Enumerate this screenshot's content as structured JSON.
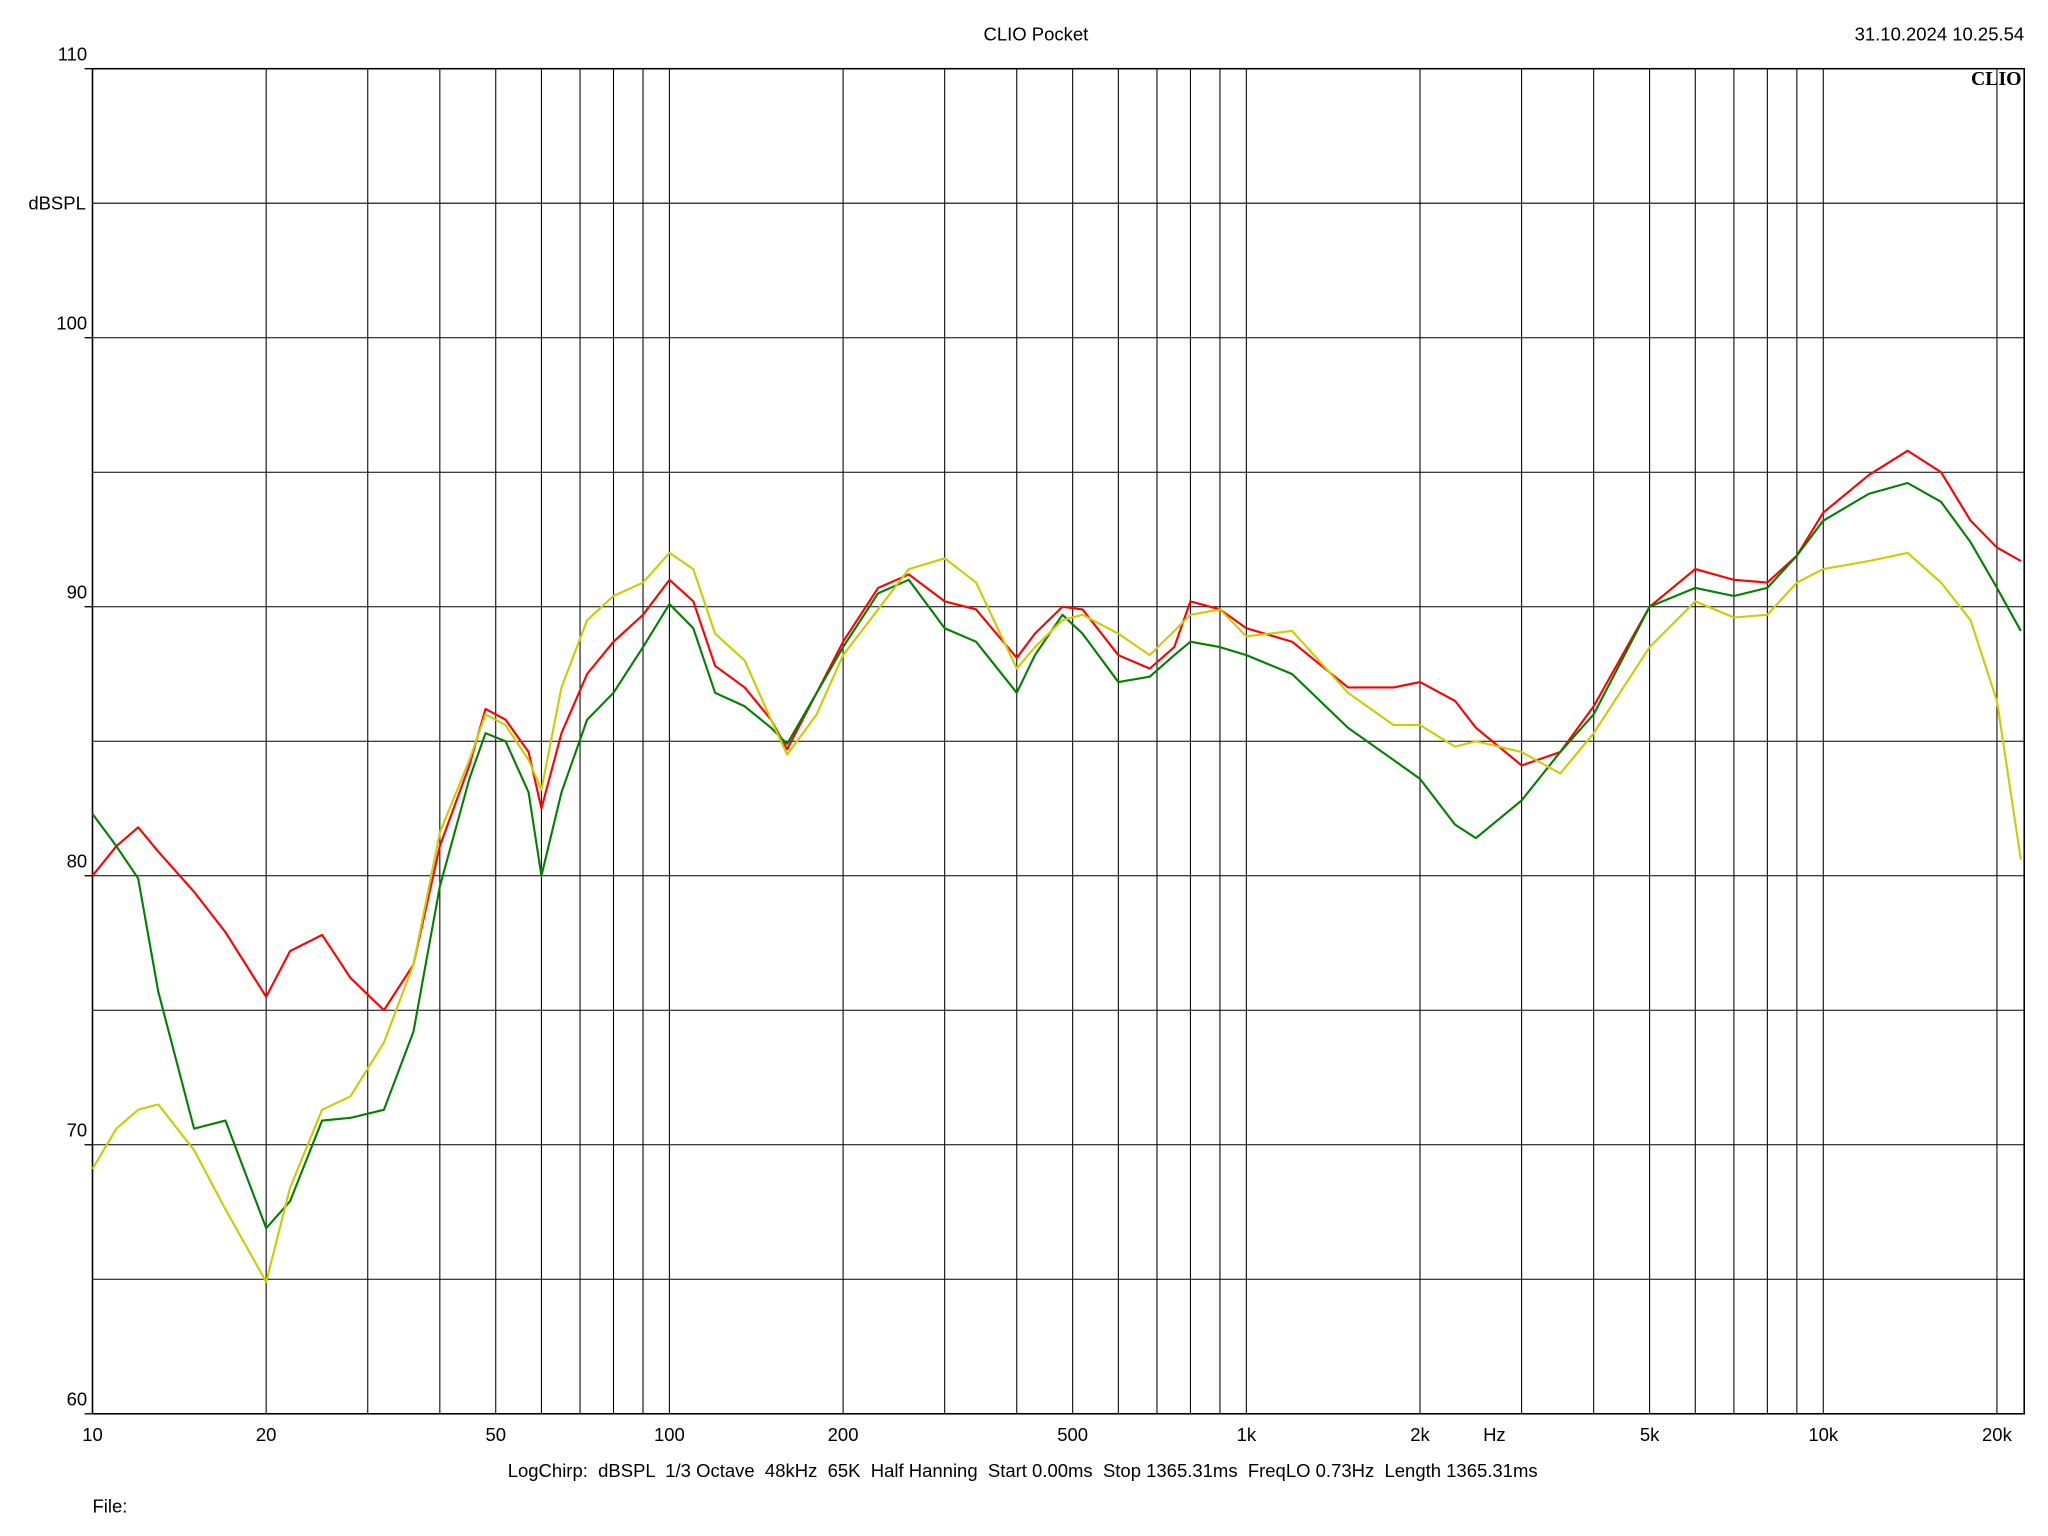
{
  "chart_data": {
    "type": "line",
    "title": "CLIO Pocket",
    "timestamp": "31.10.2024 10.25.54",
    "logo": "CLIO",
    "y_label": "dBSPL",
    "x_label": "Hz",
    "settings_line": "LogChirp:  dBSPL  1/3 Octave  48kHz  65K  Half Hanning  Start 0.00ms  Stop 1365.31ms  FreqLO 0.73Hz  Length 1365.31ms",
    "file_label": "File:",
    "log_x": true,
    "grid": true,
    "xlim": [
      10,
      22300
    ],
    "ylim": [
      60,
      110
    ],
    "xticks": [
      10,
      20,
      50,
      100,
      200,
      500,
      {
        "value": 1000,
        "label": "1k"
      },
      {
        "value": 2000,
        "label": "2k"
      },
      {
        "value": 5000,
        "label": "5k"
      },
      {
        "value": 10000,
        "label": "10k"
      },
      {
        "value": 20000,
        "label": "20k"
      }
    ],
    "x_minor_ticks": [
      30,
      40,
      60,
      70,
      80,
      90,
      300,
      400,
      600,
      700,
      800,
      900,
      3000,
      4000,
      6000,
      7000,
      8000,
      9000
    ],
    "yticks": [
      60,
      70,
      80,
      90,
      100,
      110
    ],
    "y_minor_ticks": [
      65,
      75,
      85,
      95,
      105
    ],
    "x": [
      10,
      11,
      12,
      13,
      15,
      17,
      20,
      22,
      25,
      28,
      32,
      36,
      40,
      45,
      48,
      52,
      57,
      60,
      65,
      72,
      80,
      90,
      100,
      110,
      120,
      135,
      150,
      160,
      180,
      200,
      230,
      260,
      300,
      340,
      400,
      430,
      480,
      520,
      600,
      680,
      750,
      800,
      900,
      1000,
      1200,
      1500,
      1800,
      2000,
      2300,
      2500,
      3000,
      3500,
      4000,
      5000,
      6000,
      7000,
      8000,
      9000,
      10000,
      12000,
      14000,
      16000,
      18000,
      20000,
      22000
    ],
    "series": [
      {
        "color": "#ff0000",
        "values": [
          80,
          81.1,
          81.8,
          80.9,
          79.4,
          77.9,
          75.5,
          77.2,
          77.8,
          76.2,
          75.0,
          76.7,
          81.1,
          84.1,
          86.2,
          85.8,
          84.6,
          82.5,
          85.3,
          87.5,
          88.7,
          89.7,
          91.0,
          90.2,
          87.8,
          87.0,
          85.8,
          84.7,
          86.8,
          88.7,
          90.7,
          91.2,
          90.2,
          89.9,
          88.1,
          89.0,
          90.0,
          89.9,
          88.2,
          87.7,
          88.5,
          90.2,
          89.9,
          89.2,
          88.7,
          87.0,
          87.0,
          87.2,
          86.5,
          85.5,
          84.1,
          84.6,
          86.3,
          90.0,
          91.4,
          91.0,
          90.9,
          91.9,
          93.5,
          94.9,
          95.8,
          95.0,
          93.2,
          92.2,
          91.7
        ]
      },
      {
        "color": "#008000",
        "values": [
          82.3,
          81.1,
          79.9,
          75.7,
          70.6,
          70.9,
          66.9,
          67.9,
          70.9,
          71.0,
          71.3,
          74.2,
          79.6,
          83.6,
          85.3,
          85.0,
          83.1,
          80.0,
          83.1,
          85.8,
          86.8,
          88.5,
          90.1,
          89.2,
          86.8,
          86.3,
          85.5,
          84.9,
          86.8,
          88.5,
          90.5,
          91.0,
          89.2,
          88.7,
          86.8,
          88.2,
          89.7,
          89.0,
          87.2,
          87.4,
          88.2,
          88.7,
          88.5,
          88.2,
          87.5,
          85.5,
          84.3,
          83.6,
          81.9,
          81.4,
          82.8,
          84.6,
          86.0,
          90.0,
          90.7,
          90.4,
          90.7,
          91.9,
          93.2,
          94.2,
          94.6,
          93.9,
          92.4,
          90.7,
          89.1
        ]
      },
      {
        "color": "#cccc00",
        "values": [
          69.1,
          70.6,
          71.3,
          71.5,
          69.8,
          67.6,
          64.9,
          68.4,
          71.3,
          71.8,
          73.8,
          76.7,
          81.6,
          84.3,
          86.0,
          85.6,
          84.3,
          83.2,
          87.0,
          89.5,
          90.4,
          90.9,
          92.0,
          91.4,
          89.0,
          88.0,
          85.8,
          84.5,
          86.0,
          88.2,
          89.9,
          91.4,
          91.8,
          90.9,
          87.7,
          88.5,
          89.5,
          89.7,
          89.0,
          88.2,
          89.1,
          89.7,
          89.9,
          88.9,
          89.1,
          86.8,
          85.6,
          85.6,
          84.8,
          85.0,
          84.6,
          83.8,
          85.3,
          88.5,
          90.2,
          89.6,
          89.7,
          90.9,
          91.4,
          91.7,
          92.0,
          90.9,
          89.5,
          86.5,
          80.6
        ]
      }
    ]
  }
}
